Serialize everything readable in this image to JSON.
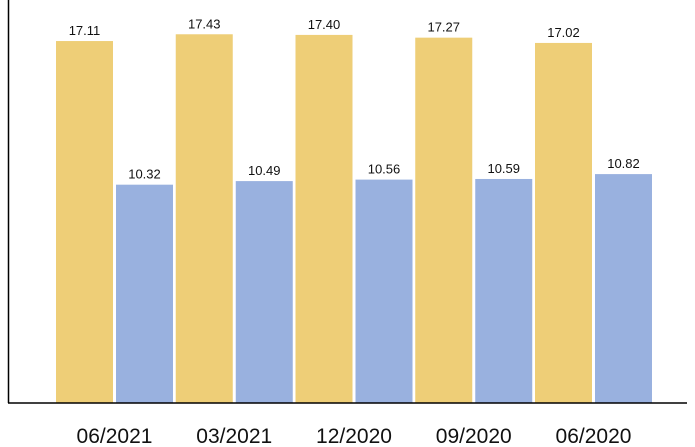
{
  "chart_data": {
    "type": "bar",
    "categories": [
      "06/2021",
      "03/2021",
      "12/2020",
      "09/2020",
      "06/2020"
    ],
    "series": [
      {
        "values": [
          17.11,
          17.43,
          17.4,
          17.27,
          17.02
        ],
        "color": "#EECE77"
      },
      {
        "values": [
          10.32,
          10.49,
          10.56,
          10.59,
          10.82
        ],
        "color": "#99B1DF"
      }
    ],
    "ylim": [
      0,
      19.05
    ],
    "grid": false,
    "legend": "none",
    "axis_color": "#000000",
    "label_color": "#111111"
  }
}
